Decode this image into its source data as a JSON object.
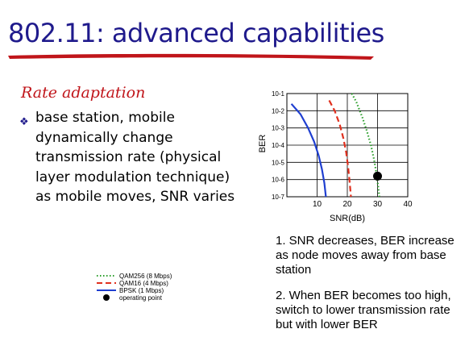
{
  "slide": {
    "title": "802.11: advanced capabilities",
    "subtitle": "Rate adaptation",
    "bullet": "base station, mobile dynamically change transmission rate (physical layer modulation technique) as mobile moves, SNR varies",
    "notes": [
      "1. SNR decreases, BER increase as node moves away from base station",
      "2. When BER becomes too high, switch to lower transmission rate but with lower BER"
    ],
    "colors": {
      "title": "#1f1a8c",
      "subtitle": "#c0151a",
      "underline": "#c0151a"
    }
  },
  "chart_data": {
    "type": "line",
    "title": "",
    "xlabel": "SNR(dB)",
    "ylabel": "BER",
    "xlim": [
      0,
      40
    ],
    "ylim_exp": [
      -7,
      -1
    ],
    "yscale": "log",
    "x_ticks": [
      10,
      20,
      30,
      40
    ],
    "y_ticks": [
      "10-1",
      "10-2",
      "10-3",
      "10-4",
      "10-5",
      "10-6",
      "10-7"
    ],
    "grid": true,
    "legend_position": "bottom-left outside",
    "series": [
      {
        "name": "QAM256 (8 Mbps)",
        "color": "#2a9d2a",
        "dash": "dotted",
        "x": [
          21.5,
          23,
          25,
          26.5,
          27.8,
          28.8,
          29.6,
          30.2,
          30.6
        ],
        "y": [
          -1,
          -1.5,
          -2.4,
          -3.2,
          -4,
          -4.8,
          -5.6,
          -6.4,
          -7
        ]
      },
      {
        "name": "QAM16 (4 Mbps)",
        "color": "#e0301e",
        "dash": "dashed",
        "x": [
          14,
          15.8,
          17.5,
          18.7,
          19.6,
          20.3,
          20.8,
          21.2
        ],
        "y": [
          -1.4,
          -2,
          -2.8,
          -3.6,
          -4.4,
          -5.3,
          -6.2,
          -7
        ]
      },
      {
        "name": "BPSK (1 Mbps)",
        "color": "#1f3fd0",
        "dash": "solid",
        "x": [
          1.5,
          4.5,
          7,
          9,
          10.5,
          11.6,
          12.4,
          12.9
        ],
        "y": [
          -1.6,
          -2.2,
          -3,
          -3.8,
          -4.6,
          -5.4,
          -6.2,
          -7
        ]
      }
    ],
    "operating_point": {
      "name": "operating point",
      "x": 30,
      "y": -5.8
    }
  }
}
